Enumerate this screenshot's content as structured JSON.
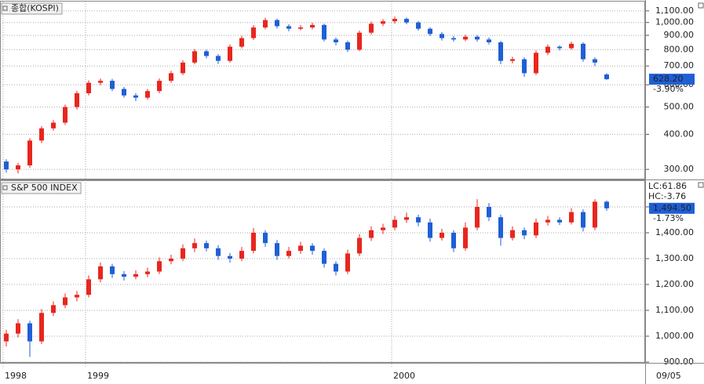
{
  "chart_data": [
    {
      "type": "candlestick",
      "title": "종합(KOSPI)",
      "log_scale": true,
      "grid": true,
      "up_color": "#e8261e",
      "down_color": "#1f5fd6",
      "ylim": [
        278,
        1187
      ],
      "yticks": [
        {
          "value": 300,
          "label": "300.00"
        },
        {
          "value": 400,
          "label": "400.00"
        },
        {
          "value": 500,
          "label": "500.00"
        },
        {
          "value": 600,
          "label": "600.00"
        },
        {
          "value": 700,
          "label": "700.00"
        },
        {
          "value": 800,
          "label": "800.00"
        },
        {
          "value": 900,
          "label": "900.00"
        },
        {
          "value": 1000,
          "label": "1,000.00"
        },
        {
          "value": 1100,
          "label": "1,100.00"
        }
      ],
      "last_label": "628.20",
      "last_change": "-3.90%",
      "open": [
        320,
        300,
        310,
        380,
        420,
        440,
        500,
        560,
        610,
        620,
        580,
        550,
        540,
        570,
        620,
        660,
        720,
        790,
        760,
        730,
        820,
        880,
        960,
        1020,
        970,
        950,
        960,
        980,
        870,
        850,
        800,
        920,
        990,
        1010,
        1030,
        1000,
        950,
        910,
        880,
        870,
        890,
        870,
        850,
        730,
        740,
        660,
        780,
        820,
        810,
        840,
        740,
        653
      ],
      "high": [
        326,
        316,
        388,
        428,
        449,
        510,
        571,
        622,
        632,
        630,
        590,
        560,
        580,
        632,
        673,
        734,
        805,
        800,
        772,
        836,
        897,
        979,
        1040,
        1032,
        985,
        978,
        998,
        990,
        885,
        862,
        935,
        1008,
        1028,
        1050,
        1042,
        1012,
        962,
        924,
        895,
        905,
        902,
        885,
        860,
        755,
        752,
        795,
        836,
        830,
        855,
        850,
        752,
        660
      ],
      "low": [
        292,
        290,
        304,
        372,
        412,
        432,
        490,
        550,
        598,
        570,
        540,
        525,
        532,
        560,
        610,
        650,
        710,
        745,
        712,
        720,
        808,
        866,
        945,
        952,
        930,
        938,
        945,
        856,
        830,
        785,
        790,
        905,
        972,
        990,
        985,
        935,
        895,
        862,
        855,
        858,
        855,
        835,
        710,
        715,
        640,
        650,
        765,
        795,
        800,
        725,
        700,
        625
      ],
      "close": [
        300,
        310,
        380,
        420,
        440,
        500,
        560,
        610,
        620,
        580,
        550,
        540,
        570,
        620,
        660,
        720,
        790,
        760,
        730,
        820,
        880,
        960,
        1020,
        970,
        950,
        960,
        980,
        870,
        850,
        800,
        920,
        990,
        1010,
        1030,
        1000,
        950,
        910,
        880,
        870,
        890,
        870,
        850,
        730,
        740,
        660,
        780,
        820,
        810,
        840,
        740,
        720,
        628.2
      ]
    },
    {
      "type": "candlestick",
      "title": "S&P 500 INDEX",
      "log_scale": false,
      "grid": true,
      "up_color": "#e8261e",
      "down_color": "#1f5fd6",
      "ylim": [
        900,
        1600
      ],
      "yticks": [
        {
          "value": 900,
          "label": "900.00"
        },
        {
          "value": 1000,
          "label": "1,000.00"
        },
        {
          "value": 1100,
          "label": "1,100.00"
        },
        {
          "value": 1200,
          "label": "1,200.00"
        },
        {
          "value": 1300,
          "label": "1,300.00"
        },
        {
          "value": 1400,
          "label": "1,400.00"
        },
        {
          "value": 1500,
          "label": "1,500.00"
        }
      ],
      "lc_label": "LC:61.86",
      "hc_label": "HC:-3.76",
      "last_label": "1,494.50",
      "last_change": "-1.73%",
      "last_date": "09/05",
      "categories": [
        "1998",
        null,
        null,
        null,
        null,
        null,
        null,
        "1999",
        null,
        null,
        null,
        null,
        null,
        null,
        null,
        null,
        null,
        null,
        null,
        null,
        null,
        null,
        null,
        null,
        null,
        null,
        null,
        null,
        null,
        null,
        null,
        null,
        null,
        "2000",
        null,
        null,
        null,
        null,
        null,
        null,
        null,
        null,
        null,
        null,
        null,
        null,
        null,
        null,
        null,
        null,
        null,
        null
      ],
      "open": [
        980,
        1010,
        1050,
        980,
        1090,
        1120,
        1150,
        1160,
        1220,
        1270,
        1240,
        1230,
        1240,
        1250,
        1290,
        1300,
        1340,
        1360,
        1340,
        1310,
        1300,
        1330,
        1400,
        1360,
        1310,
        1330,
        1350,
        1330,
        1280,
        1250,
        1320,
        1380,
        1410,
        1420,
        1450,
        1460,
        1440,
        1380,
        1400,
        1340,
        1420,
        1500,
        1460,
        1380,
        1410,
        1390,
        1440,
        1450,
        1440,
        1480,
        1420,
        1520
      ],
      "high": [
        1025,
        1066,
        1060,
        1105,
        1135,
        1165,
        1175,
        1235,
        1285,
        1280,
        1252,
        1255,
        1265,
        1305,
        1315,
        1355,
        1378,
        1370,
        1352,
        1322,
        1345,
        1418,
        1410,
        1372,
        1345,
        1365,
        1360,
        1340,
        1290,
        1335,
        1395,
        1425,
        1435,
        1465,
        1478,
        1470,
        1455,
        1415,
        1410,
        1440,
        1530,
        1515,
        1470,
        1425,
        1420,
        1455,
        1465,
        1460,
        1495,
        1490,
        1530,
        1525
      ],
      "low": [
        960,
        995,
        920,
        970,
        1078,
        1108,
        1135,
        1150,
        1208,
        1225,
        1215,
        1220,
        1228,
        1240,
        1278,
        1290,
        1325,
        1328,
        1295,
        1285,
        1290,
        1320,
        1345,
        1295,
        1300,
        1318,
        1315,
        1265,
        1235,
        1240,
        1310,
        1368,
        1395,
        1410,
        1438,
        1425,
        1365,
        1370,
        1325,
        1330,
        1410,
        1445,
        1350,
        1370,
        1375,
        1380,
        1428,
        1430,
        1432,
        1405,
        1410,
        1485
      ],
      "close": [
        1010,
        1050,
        980,
        1090,
        1120,
        1150,
        1160,
        1220,
        1270,
        1240,
        1230,
        1240,
        1250,
        1290,
        1300,
        1340,
        1360,
        1340,
        1310,
        1300,
        1330,
        1400,
        1360,
        1310,
        1330,
        1350,
        1330,
        1280,
        1250,
        1320,
        1380,
        1410,
        1420,
        1450,
        1460,
        1440,
        1380,
        1400,
        1340,
        1420,
        1500,
        1460,
        1380,
        1410,
        1390,
        1440,
        1450,
        1440,
        1480,
        1420,
        1520,
        1494.5
      ]
    }
  ]
}
